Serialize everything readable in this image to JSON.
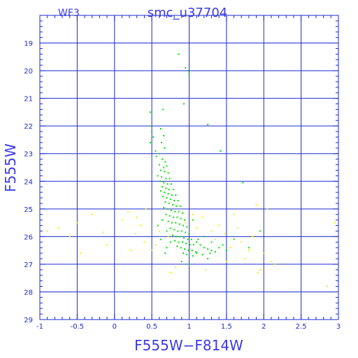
{
  "chart_data": {
    "type": "scatter",
    "title": "smc_u37704",
    "subtitle": "WF3",
    "xlabel": "F555W−F814W",
    "ylabel": "F555W",
    "xlim": [
      -1,
      3
    ],
    "ylim": [
      29,
      18
    ],
    "y_inverted": true,
    "grid": true,
    "x_ticks": [
      -1,
      -0.5,
      0,
      0.5,
      1,
      1.5,
      2,
      2.5,
      3
    ],
    "x_tick_labels": [
      "-1",
      "-0.5",
      "0",
      "0.5",
      "1",
      "1.5",
      "2",
      "2.5",
      "3"
    ],
    "y_ticks": [
      19,
      20,
      21,
      22,
      23,
      24,
      25,
      26,
      27,
      28,
      29
    ],
    "y_tick_labels": [
      "19",
      "20",
      "21",
      "22",
      "23",
      "24",
      "25",
      "26",
      "27",
      "28",
      "29"
    ],
    "colors": {
      "axes": "#1a2ad0",
      "grid": "#1a2ad0",
      "text": "#3a3ae8",
      "series_green": "#00e000",
      "series_yellow": "#f0f000"
    },
    "series": [
      {
        "color": "#00e000",
        "points": [
          [
            0.86,
            19.4
          ],
          [
            0.95,
            19.9
          ],
          [
            0.98,
            20.0
          ],
          [
            1.0,
            20.1
          ],
          [
            0.93,
            21.2
          ],
          [
            0.48,
            21.5
          ],
          [
            0.65,
            21.4
          ],
          [
            1.25,
            21.95
          ],
          [
            1.42,
            22.9
          ],
          [
            1.72,
            24.05
          ],
          [
            0.49,
            22.0
          ],
          [
            0.5,
            22.2
          ],
          [
            0.52,
            22.4
          ],
          [
            0.48,
            22.6
          ],
          [
            0.55,
            22.9
          ],
          [
            0.62,
            22.1
          ],
          [
            0.66,
            22.35
          ],
          [
            0.63,
            22.6
          ],
          [
            0.67,
            22.8
          ],
          [
            0.6,
            23.0
          ],
          [
            0.56,
            23.1
          ],
          [
            0.64,
            23.2
          ],
          [
            0.68,
            23.3
          ],
          [
            0.6,
            23.4
          ],
          [
            0.66,
            23.5
          ],
          [
            0.7,
            23.45
          ],
          [
            0.62,
            23.6
          ],
          [
            0.67,
            23.65
          ],
          [
            0.72,
            23.7
          ],
          [
            0.58,
            23.8
          ],
          [
            0.63,
            23.85
          ],
          [
            0.69,
            23.9
          ],
          [
            0.74,
            23.9
          ],
          [
            0.61,
            24.0
          ],
          [
            0.66,
            24.05
          ],
          [
            0.71,
            24.1
          ],
          [
            0.76,
            24.1
          ],
          [
            0.64,
            24.2
          ],
          [
            0.69,
            24.25
          ],
          [
            0.73,
            24.3
          ],
          [
            0.79,
            24.3
          ],
          [
            0.62,
            24.35
          ],
          [
            0.67,
            24.4
          ],
          [
            0.72,
            24.45
          ],
          [
            0.77,
            24.5
          ],
          [
            0.82,
            24.5
          ],
          [
            0.65,
            24.55
          ],
          [
            0.7,
            24.6
          ],
          [
            0.75,
            24.65
          ],
          [
            0.8,
            24.7
          ],
          [
            0.85,
            24.7
          ],
          [
            0.68,
            24.75
          ],
          [
            0.73,
            24.8
          ],
          [
            0.78,
            24.85
          ],
          [
            0.83,
            24.9
          ],
          [
            0.88,
            24.9
          ],
          [
            0.66,
            24.95
          ],
          [
            0.71,
            25.0
          ],
          [
            0.76,
            25.05
          ],
          [
            0.81,
            25.1
          ],
          [
            0.86,
            25.1
          ],
          [
            0.91,
            25.15
          ],
          [
            0.69,
            25.2
          ],
          [
            0.74,
            25.25
          ],
          [
            0.79,
            25.3
          ],
          [
            0.84,
            25.3
          ],
          [
            0.89,
            25.35
          ],
          [
            0.94,
            25.4
          ],
          [
            0.72,
            25.45
          ],
          [
            0.77,
            25.5
          ],
          [
            0.82,
            25.5
          ],
          [
            0.87,
            25.55
          ],
          [
            0.92,
            25.6
          ],
          [
            0.97,
            25.65
          ],
          [
            0.75,
            25.7
          ],
          [
            0.8,
            25.75
          ],
          [
            0.85,
            25.8
          ],
          [
            0.9,
            25.8
          ],
          [
            0.95,
            25.85
          ],
          [
            1.0,
            25.9
          ],
          [
            0.78,
            25.95
          ],
          [
            0.83,
            26.0
          ],
          [
            0.88,
            26.0
          ],
          [
            0.93,
            26.05
          ],
          [
            0.98,
            26.1
          ],
          [
            1.03,
            26.1
          ],
          [
            0.81,
            26.15
          ],
          [
            0.86,
            26.2
          ],
          [
            0.91,
            26.2
          ],
          [
            0.96,
            26.25
          ],
          [
            1.01,
            26.3
          ],
          [
            1.06,
            26.3
          ],
          [
            0.84,
            26.35
          ],
          [
            0.89,
            26.4
          ],
          [
            0.94,
            26.45
          ],
          [
            0.99,
            26.5
          ],
          [
            1.04,
            26.5
          ],
          [
            1.09,
            26.55
          ],
          [
            0.92,
            26.6
          ],
          [
            0.97,
            26.65
          ],
          [
            1.05,
            26.7
          ],
          [
            1.1,
            26.2
          ],
          [
            1.15,
            26.3
          ],
          [
            1.2,
            26.4
          ],
          [
            1.25,
            26.45
          ],
          [
            1.3,
            26.5
          ],
          [
            1.35,
            26.55
          ],
          [
            1.1,
            26.6
          ],
          [
            1.18,
            26.65
          ],
          [
            1.28,
            26.6
          ],
          [
            1.4,
            26.4
          ],
          [
            1.5,
            26.5
          ],
          [
            1.12,
            26.1
          ],
          [
            1.2,
            26.0
          ],
          [
            1.3,
            26.2
          ],
          [
            1.45,
            26.3
          ],
          [
            0.7,
            26.4
          ],
          [
            0.62,
            26.1
          ],
          [
            0.68,
            26.6
          ],
          [
            0.75,
            26.2
          ],
          [
            0.58,
            25.6
          ],
          [
            0.64,
            25.4
          ],
          [
            0.7,
            25.8
          ],
          [
            1.0,
            27.0
          ],
          [
            1.25,
            26.8
          ],
          [
            1.6,
            26.1
          ],
          [
            1.8,
            26.4
          ],
          [
            1.95,
            25.8
          ],
          [
            0.9,
            26.9
          ],
          [
            1.05,
            25.4
          ]
        ]
      },
      {
        "color": "#f0f000",
        "points": [
          [
            -0.9,
            25.8
          ],
          [
            -0.75,
            25.7
          ],
          [
            -0.6,
            26.0
          ],
          [
            -0.5,
            25.5
          ],
          [
            -0.45,
            26.6
          ],
          [
            -0.3,
            25.2
          ],
          [
            -0.15,
            25.85
          ],
          [
            -0.1,
            26.3
          ],
          [
            0.1,
            25.4
          ],
          [
            0.18,
            25.1
          ],
          [
            0.22,
            26.5
          ],
          [
            0.28,
            25.9
          ],
          [
            0.35,
            25.6
          ],
          [
            0.4,
            26.2
          ],
          [
            0.42,
            25.0
          ],
          [
            0.55,
            26.3
          ],
          [
            0.6,
            25.8
          ],
          [
            0.72,
            26.0
          ],
          [
            0.75,
            27.3
          ],
          [
            0.82,
            27.1
          ],
          [
            0.95,
            25.5
          ],
          [
            1.05,
            25.2
          ],
          [
            1.1,
            25.7
          ],
          [
            1.18,
            25.3
          ],
          [
            1.22,
            27.2
          ],
          [
            1.3,
            25.8
          ],
          [
            1.35,
            26.1
          ],
          [
            1.4,
            25.6
          ],
          [
            1.48,
            25.9
          ],
          [
            1.55,
            26.4
          ],
          [
            1.6,
            25.2
          ],
          [
            1.65,
            25.7
          ],
          [
            1.7,
            26.2
          ],
          [
            1.75,
            26.8
          ],
          [
            1.8,
            26.5
          ],
          [
            1.85,
            26.0
          ],
          [
            1.9,
            24.85
          ],
          [
            1.95,
            27.2
          ],
          [
            2.0,
            26.6
          ],
          [
            2.05,
            25.0
          ],
          [
            2.1,
            26.9
          ],
          [
            2.15,
            27.0
          ],
          [
            2.85,
            27.8
          ],
          [
            2.95,
            25.5
          ],
          [
            1.92,
            27.3
          ],
          [
            1.5,
            26.9
          ],
          [
            0.5,
            26.5
          ],
          [
            0.3,
            25.3
          ]
        ]
      }
    ]
  }
}
